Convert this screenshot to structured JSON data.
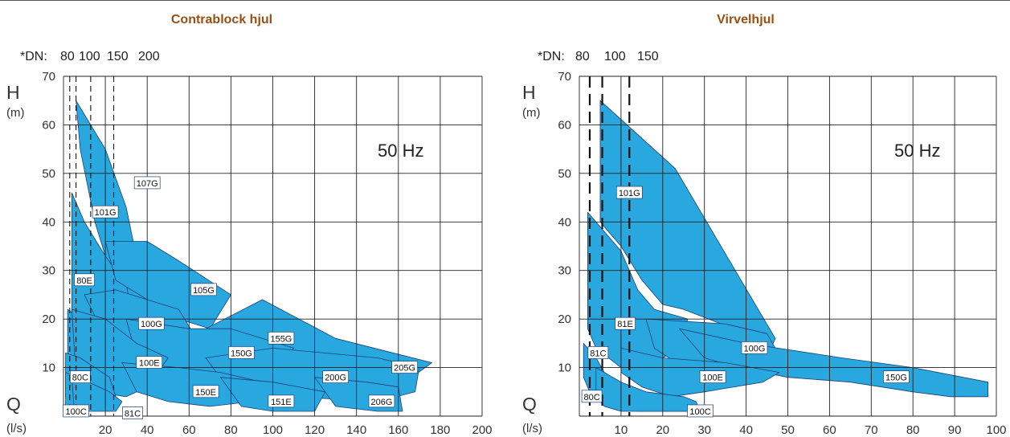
{
  "colors": {
    "title": "#9a4f12",
    "region_fill": "#29a8e0",
    "region_stroke": "#1a3f75",
    "grid": "#222222",
    "label_box": "#ffffff"
  },
  "chart_data": [
    {
      "type": "area",
      "title": "Contrablock hjul",
      "frequency": "50 Hz",
      "ylabel": "H",
      "ylabel_unit": "(m)",
      "xlabel": "Q",
      "xlabel_unit": "(l/s)",
      "xlim": [
        0,
        200
      ],
      "ylim": [
        0,
        70
      ],
      "xticks": [
        20,
        40,
        60,
        80,
        100,
        120,
        140,
        160,
        180,
        200
      ],
      "yticks": [
        10,
        20,
        30,
        40,
        50,
        60,
        70
      ],
      "dn_prefix": "*DN:",
      "dn_labels": [
        "80",
        "100",
        "150",
        "200"
      ],
      "dn_lines": [
        {
          "label": "80",
          "q": 3
        },
        {
          "label": "100",
          "q": 6
        },
        {
          "label": "150",
          "q": 13
        },
        {
          "label": "200",
          "q": 24
        }
      ],
      "regions": [
        {
          "name": "107G",
          "points": [
            [
              6,
              65
            ],
            [
              20,
              55
            ],
            [
              30,
              43
            ],
            [
              40,
              22
            ],
            [
              40,
              17
            ],
            [
              32,
              18
            ],
            [
              25,
              26
            ],
            [
              15,
              40
            ],
            [
              8,
              55
            ]
          ]
        },
        {
          "name": "101G",
          "points": [
            [
              4,
              46
            ],
            [
              10,
              40
            ],
            [
              20,
              33
            ],
            [
              30,
              27
            ],
            [
              34,
              19
            ],
            [
              30,
              15
            ],
            [
              20,
              12
            ],
            [
              10,
              10
            ],
            [
              4,
              12
            ]
          ]
        },
        {
          "name": "105G",
          "points": [
            [
              20,
              36
            ],
            [
              40,
              36
            ],
            [
              55,
              32
            ],
            [
              80,
              25
            ],
            [
              70,
              18
            ],
            [
              55,
              20
            ],
            [
              40,
              24
            ],
            [
              25,
              28
            ]
          ]
        },
        {
          "name": "80E",
          "points": [
            [
              2,
              22
            ],
            [
              8,
              20
            ],
            [
              12,
              16
            ],
            [
              15,
              10
            ],
            [
              18,
              6
            ],
            [
              10,
              5
            ],
            [
              4,
              6
            ],
            [
              2,
              10
            ]
          ]
        },
        {
          "name": "100G",
          "points": [
            [
              10,
              25
            ],
            [
              25,
              26
            ],
            [
              40,
              24
            ],
            [
              55,
              22
            ],
            [
              65,
              15
            ],
            [
              45,
              13
            ],
            [
              30,
              14
            ],
            [
              18,
              18
            ]
          ]
        },
        {
          "name": "155G",
          "points": [
            [
              68,
              18
            ],
            [
              95,
              24
            ],
            [
              130,
              16
            ],
            [
              176,
              11
            ],
            [
              160,
              6
            ],
            [
              130,
              7
            ],
            [
              100,
              9
            ],
            [
              75,
              12
            ]
          ]
        },
        {
          "name": "150G",
          "points": [
            [
              30,
              20
            ],
            [
              60,
              18
            ],
            [
              80,
              18
            ],
            [
              110,
              14
            ],
            [
              100,
              9
            ],
            [
              80,
              8
            ],
            [
              55,
              9
            ],
            [
              35,
              12
            ]
          ]
        },
        {
          "name": "100E",
          "points": [
            [
              4,
              22
            ],
            [
              20,
              20
            ],
            [
              35,
              15
            ],
            [
              50,
              12
            ],
            [
              40,
              6
            ],
            [
              30,
              4
            ],
            [
              15,
              5
            ],
            [
              6,
              8
            ]
          ]
        },
        {
          "name": "200G",
          "points": [
            [
              68,
              12
            ],
            [
              100,
              14
            ],
            [
              150,
              12
            ],
            [
              170,
              10
            ],
            [
              168,
              5
            ],
            [
              150,
              3
            ],
            [
              110,
              4
            ],
            [
              80,
              5
            ]
          ]
        },
        {
          "name": "80C",
          "points": [
            [
              1,
              13
            ],
            [
              8,
              12
            ],
            [
              15,
              10
            ],
            [
              22,
              8
            ],
            [
              25,
              4
            ],
            [
              15,
              2
            ],
            [
              6,
              2
            ],
            [
              1,
              4
            ]
          ]
        },
        {
          "name": "150E",
          "points": [
            [
              28,
              11
            ],
            [
              55,
              10
            ],
            [
              75,
              9
            ],
            [
              95,
              7
            ],
            [
              90,
              3
            ],
            [
              70,
              2
            ],
            [
              50,
              3
            ],
            [
              35,
              5
            ]
          ]
        },
        {
          "name": "151E",
          "points": [
            [
              75,
              8
            ],
            [
              100,
              7
            ],
            [
              125,
              5
            ],
            [
              120,
              1
            ],
            [
              100,
              1
            ],
            [
              85,
              2
            ]
          ]
        },
        {
          "name": "206G",
          "points": [
            [
              120,
              8
            ],
            [
              145,
              7
            ],
            [
              160,
              6
            ],
            [
              162,
              1
            ],
            [
              150,
              1
            ],
            [
              130,
              2
            ]
          ]
        },
        {
          "name": "100C",
          "points": [
            [
              1,
              9
            ],
            [
              6,
              8
            ],
            [
              10,
              5
            ],
            [
              12,
              1
            ],
            [
              6,
              1
            ],
            [
              1,
              1
            ]
          ]
        },
        {
          "name": "81C",
          "points": [
            [
              4,
              8
            ],
            [
              12,
              7
            ],
            [
              22,
              5
            ],
            [
              28,
              3
            ],
            [
              25,
              1
            ],
            [
              12,
              1
            ],
            [
              5,
              2
            ]
          ]
        }
      ],
      "labels": [
        {
          "text": "107G",
          "q": 40,
          "h": 48
        },
        {
          "text": "101G",
          "q": 20,
          "h": 42
        },
        {
          "text": "80E",
          "q": 10,
          "h": 28
        },
        {
          "text": "105G",
          "q": 67,
          "h": 26
        },
        {
          "text": "100G",
          "q": 42,
          "h": 19
        },
        {
          "text": "155G",
          "q": 104,
          "h": 16
        },
        {
          "text": "150G",
          "q": 85,
          "h": 13
        },
        {
          "text": "100E",
          "q": 41,
          "h": 11
        },
        {
          "text": "205G",
          "q": 163,
          "h": 10
        },
        {
          "text": "200G",
          "q": 130,
          "h": 8
        },
        {
          "text": "80C",
          "q": 8,
          "h": 8
        },
        {
          "text": "150E",
          "q": 68,
          "h": 5
        },
        {
          "text": "151E",
          "q": 104,
          "h": 3
        },
        {
          "text": "206G",
          "q": 152,
          "h": 3
        },
        {
          "text": "100C",
          "q": 6,
          "h": 1
        },
        {
          "text": "81C",
          "q": 33,
          "h": 0.6
        }
      ]
    },
    {
      "type": "area",
      "title": "Virvelhjul",
      "frequency": "50 Hz",
      "ylabel": "H",
      "ylabel_unit": "(m)",
      "xlabel": "Q",
      "xlabel_unit": "(l/s)",
      "xlim": [
        0,
        100
      ],
      "ylim": [
        0,
        70
      ],
      "xticks": [
        10,
        20,
        30,
        40,
        50,
        60,
        70,
        80,
        90,
        100
      ],
      "yticks": [
        10,
        20,
        30,
        40,
        50,
        60,
        70
      ],
      "dn_prefix": "*DN:",
      "dn_labels": [
        "80",
        "100",
        "150"
      ],
      "dn_lines": [
        {
          "label": "80",
          "q": 2.5
        },
        {
          "label": "100",
          "q": 5.5
        },
        {
          "label": "150",
          "q": 12
        }
      ],
      "regions": [
        {
          "name": "101G",
          "points": [
            [
              5,
              65
            ],
            [
              23,
              51
            ],
            [
              47,
              16
            ],
            [
              46,
              14
            ],
            [
              37,
              18
            ],
            [
              25,
              22
            ],
            [
              20,
              23
            ],
            [
              15,
              28
            ],
            [
              10,
              35
            ],
            [
              5,
              40
            ]
          ]
        },
        {
          "name": "81E",
          "points": [
            [
              2,
              42
            ],
            [
              10,
              34
            ],
            [
              14,
              26
            ],
            [
              18,
              22
            ],
            [
              26,
              20
            ],
            [
              24,
              14
            ],
            [
              16,
              10
            ],
            [
              10,
              10
            ],
            [
              4,
              14
            ],
            [
              2,
              18
            ]
          ]
        },
        {
          "name": "100G",
          "points": [
            [
              16,
              20
            ],
            [
              35,
              19
            ],
            [
              45,
              17
            ],
            [
              47,
              14
            ],
            [
              46,
              12
            ],
            [
              35,
              9
            ],
            [
              25,
              10
            ],
            [
              18,
              14
            ]
          ]
        },
        {
          "name": "150G",
          "points": [
            [
              24,
              18
            ],
            [
              40,
              15
            ],
            [
              63,
              12
            ],
            [
              80,
              10
            ],
            [
              98,
              7
            ],
            [
              98,
              4
            ],
            [
              89,
              4
            ],
            [
              80,
              5
            ],
            [
              65,
              7
            ],
            [
              50,
              8
            ],
            [
              38,
              10
            ],
            [
              30,
              12
            ]
          ]
        },
        {
          "name": "100E",
          "points": [
            [
              10,
              14
            ],
            [
              20,
              12
            ],
            [
              35,
              11
            ],
            [
              48,
              9
            ],
            [
              44,
              7
            ],
            [
              30,
              5
            ],
            [
              22,
              4
            ],
            [
              15,
              6
            ],
            [
              10,
              9
            ]
          ]
        },
        {
          "name": "80C",
          "points": [
            [
              1,
              15
            ],
            [
              4,
              12
            ],
            [
              6,
              9
            ],
            [
              10,
              6
            ],
            [
              15,
              4
            ],
            [
              23,
              3
            ],
            [
              26,
              1
            ],
            [
              20,
              1
            ],
            [
              14,
              1
            ],
            [
              8,
              2
            ],
            [
              3,
              4
            ],
            [
              1,
              8
            ]
          ]
        },
        {
          "name": "100C",
          "points": [
            [
              4,
              10
            ],
            [
              10,
              7
            ],
            [
              16,
              5
            ],
            [
              25,
              4
            ],
            [
              28,
              3
            ],
            [
              29,
              1
            ],
            [
              20,
              1
            ],
            [
              10,
              1
            ],
            [
              6,
              2
            ],
            [
              4,
              4
            ]
          ]
        }
      ],
      "labels": [
        {
          "text": "101G",
          "q": 12,
          "h": 46
        },
        {
          "text": "81E",
          "q": 11,
          "h": 19
        },
        {
          "text": "81C",
          "q": 4.5,
          "h": 13
        },
        {
          "text": "100G",
          "q": 42,
          "h": 14
        },
        {
          "text": "100E",
          "q": 32,
          "h": 8
        },
        {
          "text": "150G",
          "q": 76,
          "h": 8
        },
        {
          "text": "80C",
          "q": 3,
          "h": 4
        },
        {
          "text": "100C",
          "q": 29,
          "h": 1
        }
      ]
    }
  ]
}
